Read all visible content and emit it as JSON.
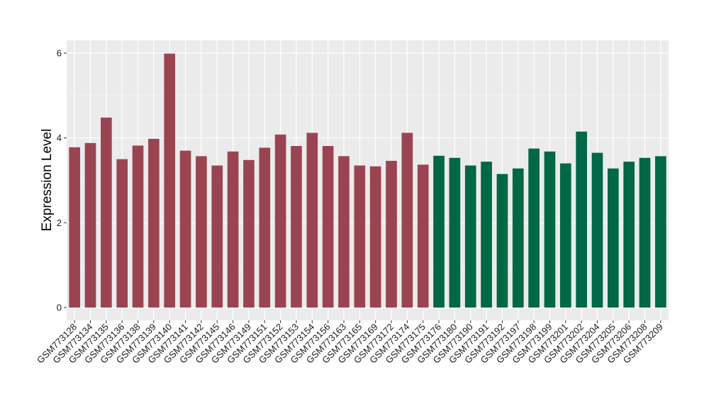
{
  "chart_data": {
    "type": "bar",
    "title": "",
    "xlabel": "",
    "ylabel": "Expression Level",
    "ylim": [
      0,
      6
    ],
    "yticks": [
      0,
      2,
      4,
      6
    ],
    "grid": true,
    "background": "#ebebeb",
    "categories": [
      "GSM773128",
      "GSM773134",
      "GSM773135",
      "GSM773136",
      "GSM773138",
      "GSM773139",
      "GSM773140",
      "GSM773141",
      "GSM773142",
      "GSM773145",
      "GSM773146",
      "GSM773149",
      "GSM773151",
      "GSM773152",
      "GSM773153",
      "GSM773154",
      "GSM773156",
      "GSM773163",
      "GSM773165",
      "GSM773169",
      "GSM773172",
      "GSM773174",
      "GSM773175",
      "GSM773176",
      "GSM773180",
      "GSM773190",
      "GSM773191",
      "GSM773192",
      "GSM773197",
      "GSM773198",
      "GSM773199",
      "GSM773201",
      "GSM773202",
      "GSM773204",
      "GSM773205",
      "GSM773206",
      "GSM773208",
      "GSM773209"
    ],
    "values": [
      3.78,
      3.88,
      4.48,
      3.5,
      3.82,
      3.98,
      5.99,
      3.7,
      3.57,
      3.35,
      3.68,
      3.48,
      3.77,
      4.08,
      3.81,
      4.12,
      3.81,
      3.57,
      3.35,
      3.33,
      3.46,
      4.12,
      3.37,
      3.58,
      3.53,
      3.35,
      3.44,
      3.15,
      3.28,
      3.75,
      3.68,
      3.4,
      4.15,
      3.65,
      3.28,
      3.44,
      3.53,
      3.57
    ],
    "group_colors": [
      "#9b4451",
      "#9b4451",
      "#9b4451",
      "#9b4451",
      "#9b4451",
      "#9b4451",
      "#9b4451",
      "#9b4451",
      "#9b4451",
      "#9b4451",
      "#9b4451",
      "#9b4451",
      "#9b4451",
      "#9b4451",
      "#9b4451",
      "#9b4451",
      "#9b4451",
      "#9b4451",
      "#9b4451",
      "#9b4451",
      "#9b4451",
      "#9b4451",
      "#9b4451",
      "#006747",
      "#006747",
      "#006747",
      "#006747",
      "#006747",
      "#006747",
      "#006747",
      "#006747",
      "#006747",
      "#006747",
      "#006747",
      "#006747",
      "#006747",
      "#006747",
      "#006747"
    ],
    "legend": "none"
  }
}
